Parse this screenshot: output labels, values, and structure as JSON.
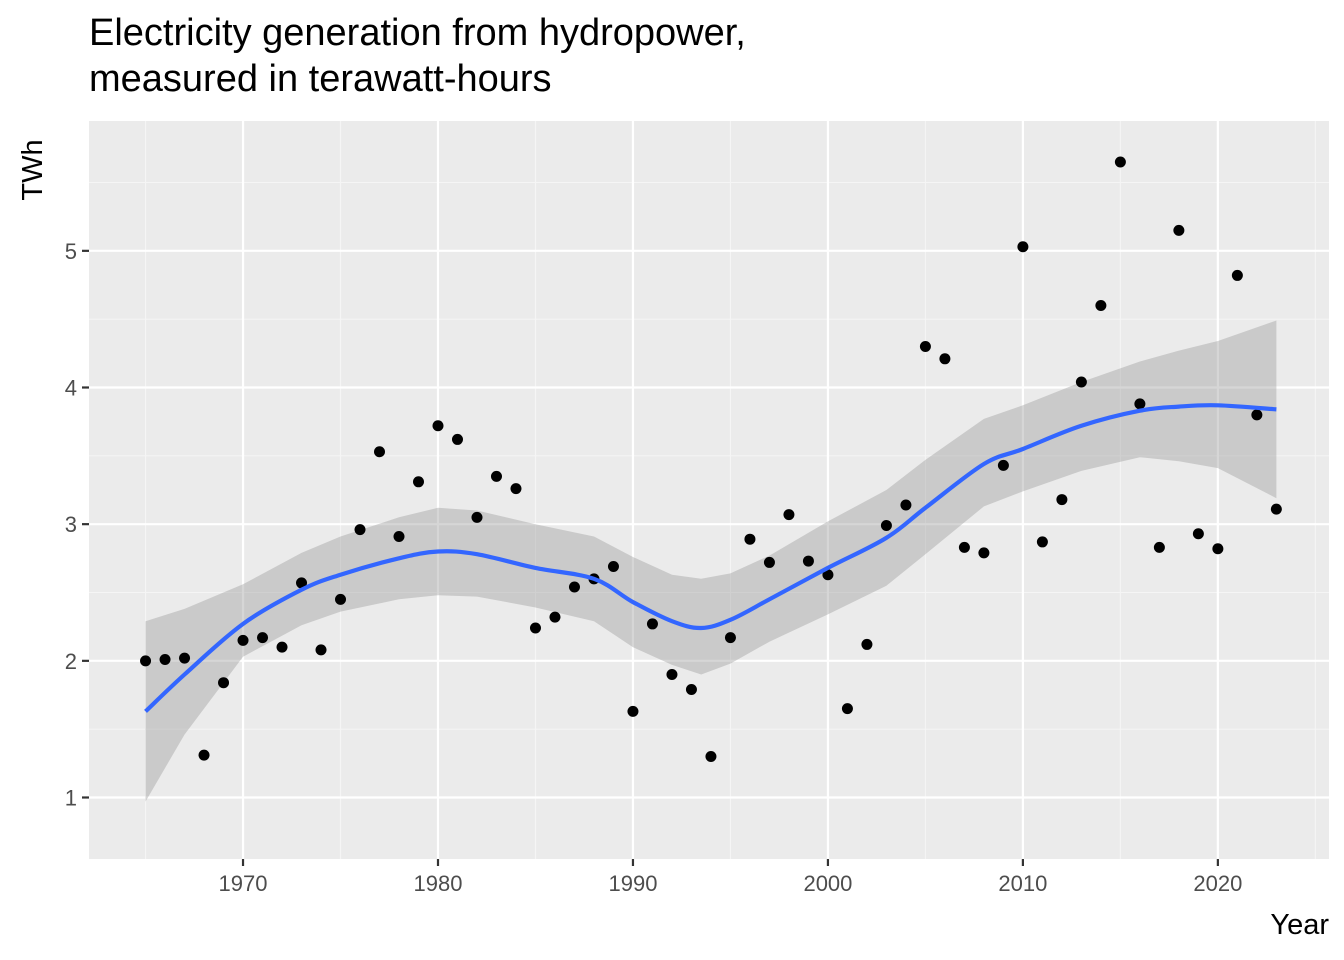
{
  "chart_data": {
    "type": "scatter",
    "title": [
      "Electricity generation from hydropower,",
      "measured in terawatt-hours"
    ],
    "xlabel": "Year",
    "ylabel": "TWh",
    "xlim": [
      1962,
      1963.0,
      2025.7
    ],
    "xlim_note": "",
    "x_range": [
      1962.1,
      2025.7
    ],
    "y_range": [
      0.55,
      5.95
    ],
    "x_ticks": [
      1970,
      1980,
      1990,
      2000,
      2010,
      2020
    ],
    "y_ticks": [
      1,
      2,
      3,
      4,
      5
    ],
    "grid": true,
    "points": [
      {
        "x": 1965,
        "y": 2.0
      },
      {
        "x": 1966,
        "y": 2.01
      },
      {
        "x": 1967,
        "y": 2.02
      },
      {
        "x": 1968,
        "y": 1.31
      },
      {
        "x": 1969,
        "y": 1.84
      },
      {
        "x": 1970,
        "y": 2.15
      },
      {
        "x": 1971,
        "y": 2.17
      },
      {
        "x": 1972,
        "y": 2.1
      },
      {
        "x": 1973,
        "y": 2.57
      },
      {
        "x": 1974,
        "y": 2.08
      },
      {
        "x": 1975,
        "y": 2.45
      },
      {
        "x": 1976,
        "y": 2.96
      },
      {
        "x": 1977,
        "y": 3.53
      },
      {
        "x": 1978,
        "y": 2.91
      },
      {
        "x": 1979,
        "y": 3.31
      },
      {
        "x": 1980,
        "y": 3.72
      },
      {
        "x": 1981,
        "y": 3.62
      },
      {
        "x": 1982,
        "y": 3.05
      },
      {
        "x": 1983,
        "y": 3.35
      },
      {
        "x": 1984,
        "y": 3.26
      },
      {
        "x": 1985,
        "y": 2.24
      },
      {
        "x": 1986,
        "y": 2.32
      },
      {
        "x": 1987,
        "y": 2.54
      },
      {
        "x": 1988,
        "y": 2.6
      },
      {
        "x": 1989,
        "y": 2.69
      },
      {
        "x": 1990,
        "y": 1.63
      },
      {
        "x": 1991,
        "y": 2.27
      },
      {
        "x": 1992,
        "y": 1.9
      },
      {
        "x": 1993,
        "y": 1.79
      },
      {
        "x": 1994,
        "y": 1.3
      },
      {
        "x": 1995,
        "y": 2.17
      },
      {
        "x": 1996,
        "y": 2.89
      },
      {
        "x": 1997,
        "y": 2.72
      },
      {
        "x": 1998,
        "y": 3.07
      },
      {
        "x": 1999,
        "y": 2.73
      },
      {
        "x": 2000,
        "y": 2.63
      },
      {
        "x": 2001,
        "y": 1.65
      },
      {
        "x": 2002,
        "y": 2.12
      },
      {
        "x": 2003,
        "y": 2.99
      },
      {
        "x": 2004,
        "y": 3.14
      },
      {
        "x": 2005,
        "y": 4.3
      },
      {
        "x": 2006,
        "y": 4.21
      },
      {
        "x": 2007,
        "y": 2.83
      },
      {
        "x": 2008,
        "y": 2.79
      },
      {
        "x": 2009,
        "y": 3.43
      },
      {
        "x": 2010,
        "y": 5.03
      },
      {
        "x": 2011,
        "y": 2.87
      },
      {
        "x": 2012,
        "y": 3.18
      },
      {
        "x": 2013,
        "y": 4.04
      },
      {
        "x": 2014,
        "y": 4.6
      },
      {
        "x": 2015,
        "y": 5.65
      },
      {
        "x": 2016,
        "y": 3.88
      },
      {
        "x": 2017,
        "y": 2.83
      },
      {
        "x": 2018,
        "y": 5.15
      },
      {
        "x": 2019,
        "y": 2.93
      },
      {
        "x": 2020,
        "y": 2.82
      },
      {
        "x": 2021,
        "y": 4.82
      },
      {
        "x": 2022,
        "y": 3.8
      },
      {
        "x": 2023,
        "y": 3.11
      }
    ],
    "smooth": {
      "x": [
        1965,
        1967,
        1970,
        1973,
        1975,
        1978,
        1980,
        1982,
        1985,
        1988,
        1990,
        1992,
        1993.5,
        1995,
        1997,
        2000,
        2003,
        2005,
        2008,
        2010,
        2013,
        2016,
        2018,
        2020,
        2023
      ],
      "y": [
        1.63,
        1.9,
        2.27,
        2.52,
        2.63,
        2.75,
        2.8,
        2.78,
        2.68,
        2.6,
        2.43,
        2.29,
        2.24,
        2.3,
        2.45,
        2.68,
        2.9,
        3.12,
        3.44,
        3.55,
        3.72,
        3.83,
        3.86,
        3.87,
        3.84
      ],
      "lower": [
        0.97,
        1.46,
        2.03,
        2.26,
        2.36,
        2.45,
        2.48,
        2.47,
        2.39,
        2.29,
        2.1,
        1.97,
        1.9,
        1.98,
        2.14,
        2.34,
        2.55,
        2.78,
        3.13,
        3.24,
        3.39,
        3.49,
        3.46,
        3.41,
        3.19
      ],
      "upper": [
        2.29,
        2.38,
        2.56,
        2.79,
        2.91,
        3.05,
        3.12,
        3.1,
        3.0,
        2.91,
        2.76,
        2.63,
        2.6,
        2.64,
        2.77,
        3.02,
        3.25,
        3.47,
        3.77,
        3.87,
        4.04,
        4.19,
        4.27,
        4.34,
        4.49
      ]
    },
    "colors": {
      "panel": "#ebebeb",
      "grid_major": "#ffffff",
      "grid_minor": "#f5f5f5",
      "points": "#000000",
      "smooth_line": "#3366ff",
      "ribbon": "#999999"
    }
  }
}
